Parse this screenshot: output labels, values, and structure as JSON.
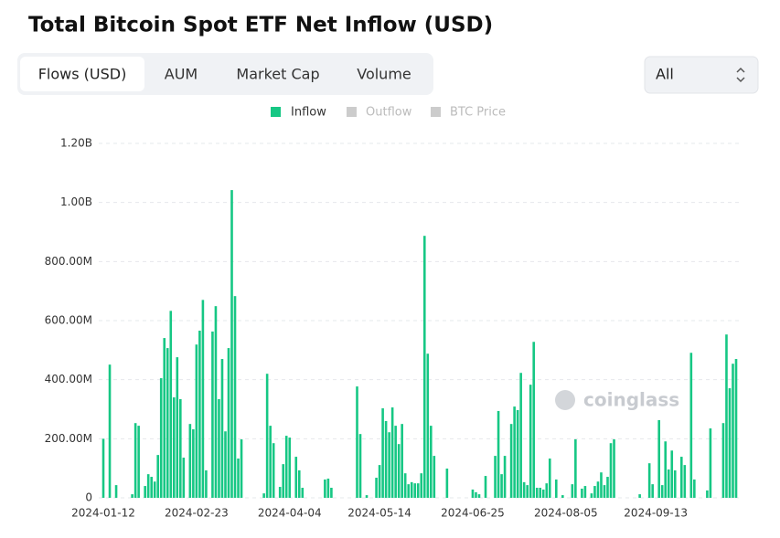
{
  "header": {
    "title": "Total Bitcoin Spot ETF Net Inflow (USD)"
  },
  "tabs": [
    "Flows (USD)",
    "AUM",
    "Market Cap",
    "Volume"
  ],
  "active_tab": 0,
  "select": "All",
  "watermark": "coinglass",
  "chart_data": {
    "type": "bar",
    "inactive_legend": [
      "Outflow",
      "BTC Price"
    ],
    "ylim": [
      0,
      1200000000.0
    ],
    "yticks": [
      0,
      {
        "value": 200000000.0,
        "label": "200.00M"
      },
      {
        "value": 400000000.0,
        "label": "400.00M"
      },
      {
        "value": 600000000.0,
        "label": "600.00M"
      },
      {
        "value": 800000000.0,
        "label": "800.00M"
      },
      {
        "value": 1000000000.0,
        "label": "1.00B"
      },
      {
        "value": 1200000000.0,
        "label": "1.20B"
      }
    ],
    "grid": true,
    "categories": [
      "2024-01-12",
      null,
      null,
      null,
      null,
      null,
      null,
      null,
      null,
      null,
      null,
      null,
      null,
      null,
      null,
      null,
      null,
      null,
      null,
      null,
      null,
      null,
      null,
      null,
      null,
      null,
      null,
      null,
      null,
      "2024-02-23",
      null,
      null,
      null,
      null,
      null,
      null,
      null,
      null,
      null,
      null,
      null,
      null,
      null,
      null,
      null,
      null,
      null,
      null,
      null,
      null,
      null,
      null,
      null,
      null,
      null,
      null,
      null,
      null,
      "2024-04-04",
      null,
      null,
      null,
      null,
      null,
      null,
      null,
      null,
      null,
      null,
      null,
      null,
      null,
      null,
      null,
      null,
      null,
      null,
      null,
      null,
      null,
      null,
      null,
      null,
      null,
      null,
      null,
      "2024-05-14",
      null,
      null,
      null,
      null,
      null,
      null,
      null,
      null,
      null,
      null,
      null,
      null,
      null,
      null,
      null,
      null,
      null,
      null,
      null,
      null,
      null,
      null,
      null,
      null,
      null,
      null,
      null,
      null,
      "2024-06-25",
      null,
      null,
      null,
      null,
      null,
      null,
      null,
      null,
      null,
      null,
      null,
      null,
      null,
      null,
      null,
      null,
      null,
      null,
      null,
      null,
      null,
      null,
      null,
      null,
      null,
      null,
      null,
      null,
      "2024-08-05",
      null,
      null,
      null,
      null,
      null,
      null,
      null,
      null,
      null,
      null,
      null,
      null,
      null,
      null,
      null,
      null,
      null,
      null,
      null,
      null,
      null,
      null,
      null,
      null,
      null,
      null,
      null,
      "2024-09-13",
      null,
      null,
      null,
      null,
      null,
      null,
      null,
      null,
      null,
      null,
      null,
      null,
      null,
      null,
      null,
      null,
      null,
      null,
      null,
      null,
      null,
      null,
      null,
      null,
      null
    ],
    "series": [
      {
        "name": "Inflow",
        "color": "#16c784",
        "values": [
          200000000.0,
          null,
          451000000.0,
          null,
          43000000.0,
          null,
          null,
          null,
          null,
          12000000.0,
          253000000.0,
          244000000.0,
          null,
          40000000.0,
          80000000.0,
          71000000.0,
          55000000.0,
          145000000.0,
          405000000.0,
          541000000.0,
          507000000.0,
          633000000.0,
          340000000.0,
          476000000.0,
          334000000.0,
          136000000.0,
          null,
          250000000.0,
          232000000.0,
          519000000.0,
          566000000.0,
          670000000.0,
          93000000.0,
          null,
          563000000.0,
          649000000.0,
          334000000.0,
          470000000.0,
          225000000.0,
          507000000.0,
          1042000000.0,
          683000000.0,
          133000000.0,
          198000000.0,
          null,
          null,
          null,
          null,
          null,
          null,
          15000000.0,
          420000000.0,
          244000000.0,
          185000000.0,
          null,
          37000000.0,
          114000000.0,
          210000000.0,
          204000000.0,
          null,
          139000000.0,
          93000000.0,
          34000000.0,
          null,
          null,
          null,
          null,
          null,
          null,
          62000000.0,
          65000000.0,
          34000000.0,
          null,
          null,
          null,
          null,
          null,
          null,
          null,
          377000000.0,
          216000000.0,
          null,
          9000000.0,
          null,
          null,
          68000000.0,
          111000000.0,
          303000000.0,
          260000000.0,
          222000000.0,
          306000000.0,
          244000000.0,
          182000000.0,
          250000000.0,
          83000000.0,
          46000000.0,
          53000000.0,
          49000000.0,
          49000000.0,
          83000000.0,
          887000000.0,
          488000000.0,
          244000000.0,
          142000000.0,
          null,
          null,
          null,
          99000000.0,
          null,
          null,
          null,
          null,
          null,
          null,
          null,
          28000000.0,
          19000000.0,
          12000000.0,
          null,
          74000000.0,
          null,
          null,
          142000000.0,
          294000000.0,
          80000000.0,
          142000000.0,
          null,
          250000000.0,
          309000000.0,
          297000000.0,
          423000000.0,
          53000000.0,
          43000000.0,
          383000000.0,
          528000000.0,
          34000000.0,
          34000000.0,
          28000000.0,
          49000000.0,
          133000000.0,
          null,
          62000000.0,
          null,
          9000000.0,
          null,
          null,
          46000000.0,
          198000000.0,
          null,
          31000000.0,
          40000000.0,
          null,
          15000000.0,
          40000000.0,
          55000000.0,
          86000000.0,
          43000000.0,
          71000000.0,
          185000000.0,
          198000000.0,
          null,
          null,
          null,
          null,
          null,
          null,
          null,
          12000000.0,
          null,
          null,
          117000000.0,
          46000000.0,
          null,
          263000000.0,
          43000000.0,
          191000000.0,
          96000000.0,
          160000000.0,
          93000000.0,
          null,
          139000000.0,
          111000000.0,
          null,
          491000000.0,
          62000000.0,
          null,
          null,
          null,
          25000000.0,
          235000000.0,
          null,
          null,
          null,
          253000000.0,
          553000000.0,
          371000000.0,
          454000000.0,
          470000000.0
        ]
      }
    ]
  }
}
